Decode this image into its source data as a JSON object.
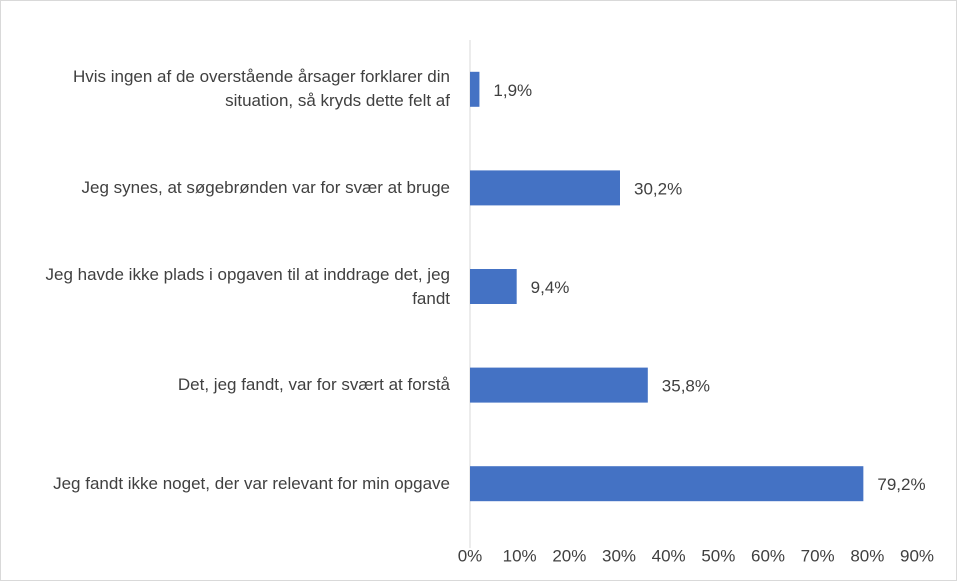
{
  "chart_data": {
    "type": "barh",
    "categories": [
      "Hvis ingen af de overstående årsager forklarer din situation, så kryds dette felt af",
      "Jeg synes, at søgebrønden var for svær at bruge",
      "Jeg havde ikke plads i opgaven til at inddrage det, jeg fandt",
      "Det, jeg fandt, var for svært at forstå",
      "Jeg fandt ikke noget, der var relevant for min opgave"
    ],
    "values": [
      1.9,
      30.2,
      9.4,
      35.8,
      79.2
    ],
    "value_labels": [
      "1,9%",
      "30,2%",
      "9,4%",
      "35,8%",
      "79,2%"
    ],
    "color": "#4472c4",
    "xlim": [
      0,
      90
    ],
    "xticks": [
      {
        "value": 0,
        "label": "0%"
      },
      {
        "value": 10,
        "label": "10%"
      },
      {
        "value": 20,
        "label": "20%"
      },
      {
        "value": 30,
        "label": "30%"
      },
      {
        "value": 40,
        "label": "40%"
      },
      {
        "value": 50,
        "label": "50%"
      },
      {
        "value": 60,
        "label": "60%"
      },
      {
        "value": 70,
        "label": "70%"
      },
      {
        "value": 80,
        "label": "80%"
      },
      {
        "value": 90,
        "label": "90%"
      }
    ],
    "grid": false
  }
}
